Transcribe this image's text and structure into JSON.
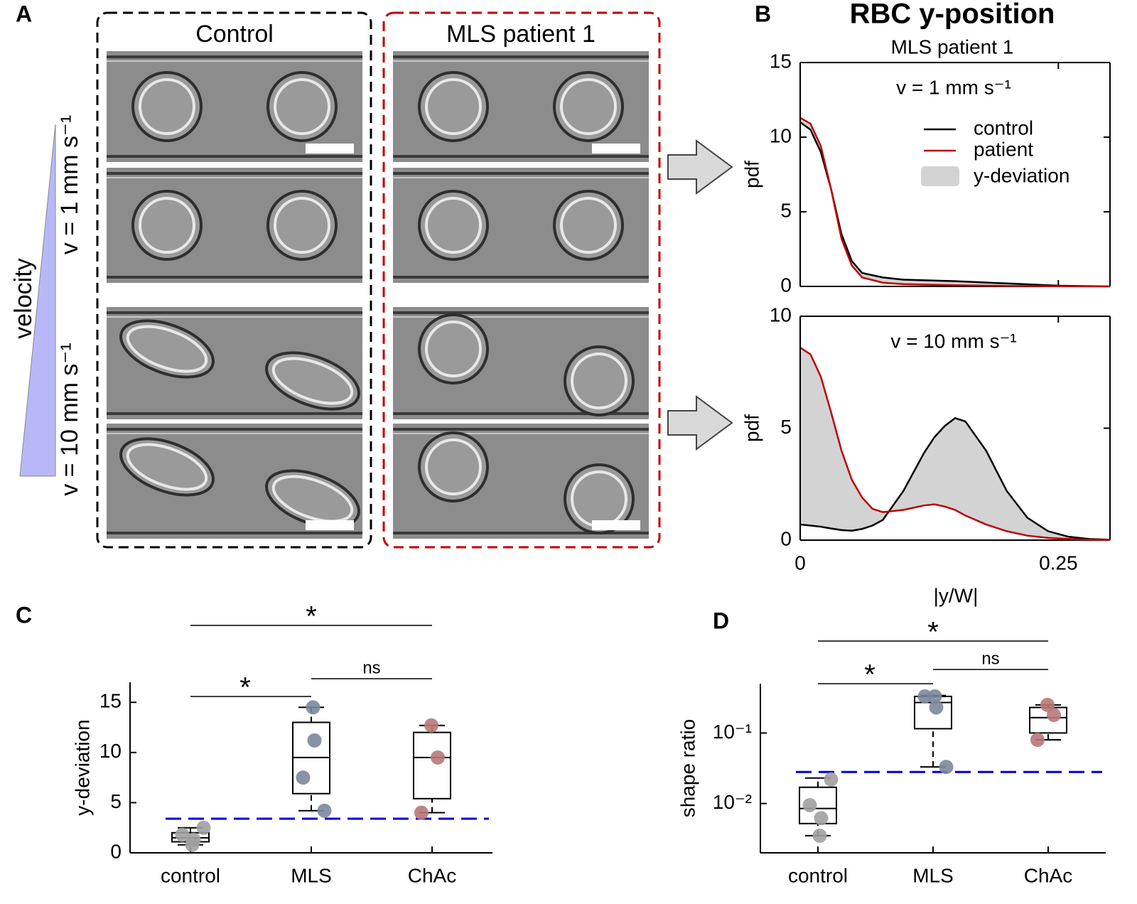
{
  "panel_labels": [
    "A",
    "B",
    "C",
    "D"
  ],
  "panel_a": {
    "columns": [
      "Control",
      "MLS patient 1"
    ],
    "axis_label": "velocity",
    "rows": [
      "v = 1 mm s⁻¹",
      "v = 10 mm s⁻¹"
    ]
  },
  "chart_data": [
    {
      "type": "line",
      "title": "RBC y-position",
      "subtitle": "MLS patient 1",
      "annotation": "v = 1 mm s⁻¹",
      "ylabel": "pdf",
      "x": [
        0,
        0.01,
        0.02,
        0.03,
        0.04,
        0.05,
        0.06,
        0.08,
        0.1,
        0.15,
        0.2,
        0.25,
        0.3
      ],
      "series": [
        {
          "name": "control",
          "color": "#000000",
          "values": [
            11,
            10.5,
            9,
            6.5,
            3.5,
            1.7,
            0.9,
            0.6,
            0.45,
            0.35,
            0.2,
            0.05,
            0
          ]
        },
        {
          "name": "patient",
          "color": "#c00000",
          "values": [
            11.3,
            10.9,
            9.4,
            6.5,
            3.2,
            1.4,
            0.6,
            0.25,
            0.15,
            0.08,
            0.03,
            0.01,
            0
          ]
        }
      ],
      "fill": {
        "name": "y-deviation",
        "color": "#d3d3d3"
      },
      "xlim": [
        0,
        0.3
      ],
      "ylim": [
        0,
        15
      ],
      "xticks": [
        0,
        0.25
      ],
      "yticks": [
        0,
        5,
        10,
        15
      ]
    },
    {
      "type": "line",
      "annotation": "v = 10 mm s⁻¹",
      "ylabel": "pdf",
      "xlabel": "|y/W|",
      "x": [
        0,
        0.01,
        0.02,
        0.03,
        0.04,
        0.05,
        0.06,
        0.07,
        0.08,
        0.1,
        0.12,
        0.13,
        0.14,
        0.15,
        0.16,
        0.18,
        0.2,
        0.22,
        0.24,
        0.26,
        0.28,
        0.3
      ],
      "series": [
        {
          "color": "#000000",
          "values": [
            0.7,
            0.65,
            0.6,
            0.52,
            0.45,
            0.42,
            0.5,
            0.65,
            0.9,
            2.2,
            3.9,
            4.6,
            5.1,
            5.45,
            5.3,
            4.0,
            2.2,
            1.0,
            0.4,
            0.15,
            0.05,
            0.02
          ]
        },
        {
          "color": "#c00000",
          "values": [
            8.6,
            8.3,
            7.3,
            5.7,
            4.0,
            2.7,
            1.9,
            1.4,
            1.25,
            1.35,
            1.55,
            1.6,
            1.5,
            1.35,
            1.1,
            0.7,
            0.4,
            0.2,
            0.1,
            0.05,
            0.02,
            0.01
          ]
        }
      ],
      "fill": {
        "color": "#d3d3d3"
      },
      "xlim": [
        0,
        0.3
      ],
      "ylim": [
        0,
        10
      ],
      "xticks": [
        0,
        0.25
      ],
      "yticks": [
        0,
        5,
        10
      ]
    },
    {
      "type": "box",
      "ylabel": "y-deviation",
      "categories": [
        "control",
        "MLS",
        "ChAc"
      ],
      "point_colors": [
        "#a0a0a0",
        "#7b889c",
        "#b87878"
      ],
      "boxes": [
        {
          "low": 0.8,
          "q1": 1.1,
          "median": 1.5,
          "q3": 2.0,
          "high": 2.5,
          "points": [
            0.8,
            1.3,
            1.8,
            2.5
          ]
        },
        {
          "low": 4.2,
          "q1": 5.9,
          "median": 9.5,
          "q3": 13,
          "high": 14.5,
          "points": [
            14.5,
            11.2,
            7.5,
            4.2
          ]
        },
        {
          "low": 4.0,
          "q1": 5.4,
          "median": 9.5,
          "q3": 12,
          "high": 12.7,
          "points": [
            12.7,
            9.5,
            4.0
          ]
        }
      ],
      "threshold": {
        "value": 3.4,
        "color": "#0000dd"
      },
      "significance": [
        {
          "label": "*",
          "from": 0,
          "to": 2
        },
        {
          "label": "*",
          "from": 0,
          "to": 1
        },
        {
          "label": "ns",
          "from": 1,
          "to": 2
        }
      ],
      "ylim": [
        0,
        17
      ],
      "yticks": [
        0,
        5,
        10,
        15
      ]
    },
    {
      "type": "box",
      "ylabel": "shape ratio",
      "log_y": true,
      "categories": [
        "control",
        "MLS",
        "ChAc"
      ],
      "point_colors": [
        "#a0a0a0",
        "#7b889c",
        "#b87878"
      ],
      "boxes": [
        {
          "low": 0.0035,
          "q1": 0.0052,
          "median": 0.0085,
          "q3": 0.017,
          "high": 0.023,
          "points": [
            0.0035,
            0.0062,
            0.0095,
            0.022
          ]
        },
        {
          "low": 0.033,
          "q1": 0.115,
          "median": 0.27,
          "q3": 0.33,
          "high": 0.34,
          "points": [
            0.33,
            0.23,
            0.33,
            0.033
          ]
        },
        {
          "low": 0.08,
          "q1": 0.1,
          "median": 0.165,
          "q3": 0.23,
          "high": 0.25,
          "points": [
            0.25,
            0.18,
            0.08
          ]
        }
      ],
      "threshold": {
        "value": 0.028,
        "color": "#0000dd"
      },
      "significance": [
        {
          "label": "*",
          "from": 0,
          "to": 2
        },
        {
          "label": "*",
          "from": 0,
          "to": 1
        },
        {
          "label": "ns",
          "from": 1,
          "to": 2
        }
      ],
      "ylim": [
        0.002,
        0.5
      ],
      "yticks": [
        {
          "value": 0.01,
          "label": "10⁻²"
        },
        {
          "value": 0.1,
          "label": "10⁻¹"
        }
      ]
    }
  ]
}
